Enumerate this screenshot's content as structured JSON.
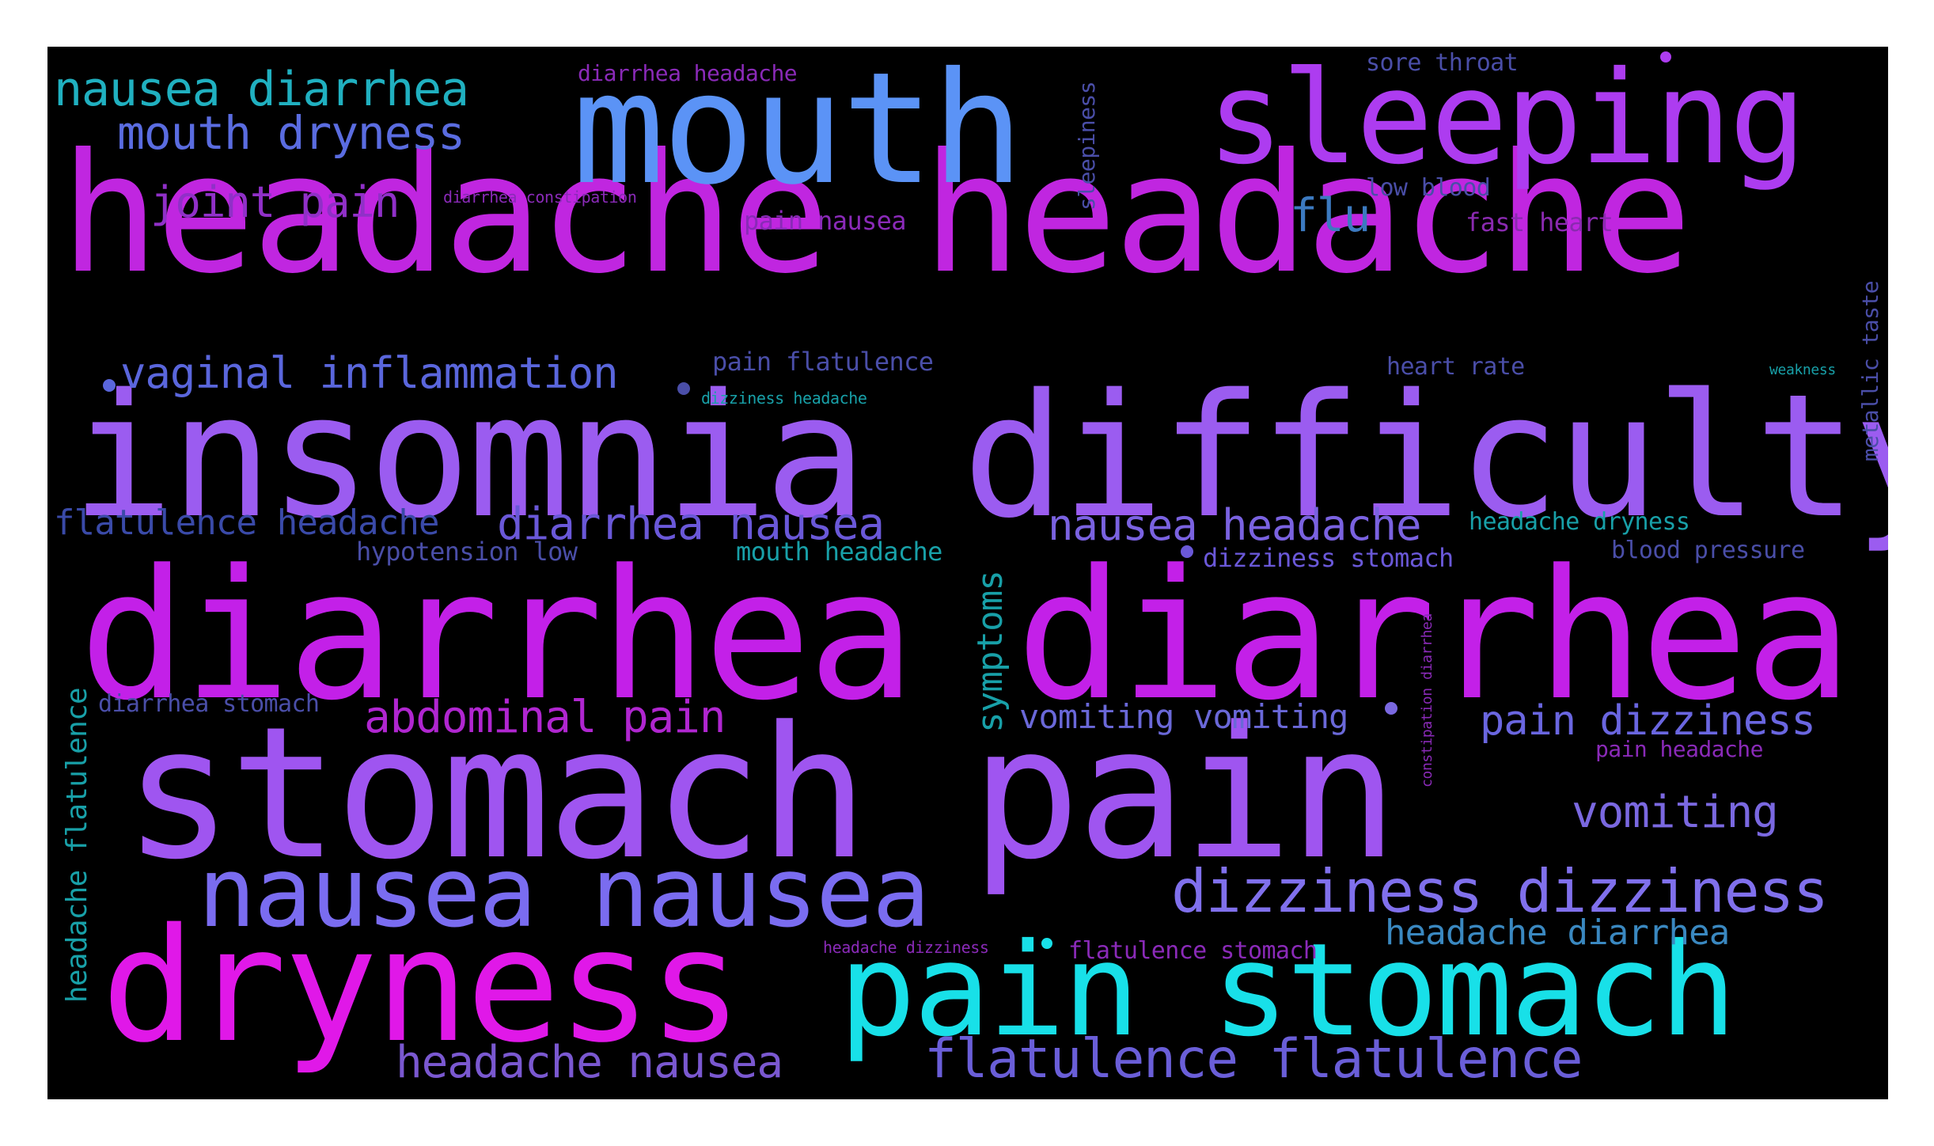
{
  "words": [
    {
      "text": "headache headache",
      "color": "#c026e0"
    },
    {
      "text": "insomnia difficulty",
      "color": "#9b5cf0"
    },
    {
      "text": "diarrhea diarrhea",
      "color": "#c320e8"
    },
    {
      "text": "stomach pain",
      "color": "#9f55f0"
    },
    {
      "text": "mouth",
      "color": "#5b93f6"
    },
    {
      "text": "sleeping",
      "color": "#ad3cf0"
    },
    {
      "text": "dryness",
      "color": "#e018e8"
    },
    {
      "text": "pain stomach",
      "color": "#18e0e8"
    },
    {
      "text": "nausea nausea",
      "color": "#7a6cf0"
    },
    {
      "text": "dizziness dizziness",
      "color": "#8070ec"
    },
    {
      "text": "flatulence flatulence",
      "color": "#6a5ed8"
    },
    {
      "text": "headache nausea",
      "color": "#7a58d0"
    },
    {
      "text": "nausea diarrhea",
      "color": "#20b0c0"
    },
    {
      "text": "mouth dryness",
      "color": "#5a6ce0"
    },
    {
      "text": "joint pain",
      "color": "#9030c8"
    },
    {
      "text": "vaginal inflammation",
      "color": "#5a66dc"
    },
    {
      "text": "flatulence headache",
      "color": "#3a4aa8"
    },
    {
      "text": "diarrhea nausea",
      "color": "#6a58d8"
    },
    {
      "text": "nausea headache",
      "color": "#7a62e0"
    },
    {
      "text": "abdominal pain",
      "color": "#b026d0"
    },
    {
      "text": "vomiting vomiting",
      "color": "#6a68d8"
    },
    {
      "text": "pain dizziness",
      "color": "#6a66e0"
    },
    {
      "text": "vomiting",
      "color": "#7a68e0"
    },
    {
      "text": "headache diarrhea",
      "color": "#3a88c0"
    },
    {
      "text": "flu",
      "color": "#3c7ac0"
    },
    {
      "text": "diarrhea headache",
      "color": "#8a2ab8"
    },
    {
      "text": "sore throat",
      "color": "#4a4ea8"
    },
    {
      "text": "low blood",
      "color": "#4a4ea8"
    },
    {
      "text": "fast heart",
      "color": "#8a2ab0"
    },
    {
      "text": "pain nausea",
      "color": "#8a2ab8"
    },
    {
      "text": "pain flatulence",
      "color": "#4a4ea8"
    },
    {
      "text": "heart rate",
      "color": "#4a4ea8"
    },
    {
      "text": "hypotension low",
      "color": "#4a4ea8"
    },
    {
      "text": "mouth headache",
      "color": "#18a0a8"
    },
    {
      "text": "dizziness stomach",
      "color": "#6a58d8"
    },
    {
      "text": "headache dryness",
      "color": "#18a0a8"
    },
    {
      "text": "blood pressure",
      "color": "#4a4ea8"
    },
    {
      "text": "diarrhea stomach",
      "color": "#4a4ea8"
    },
    {
      "text": "pain headache",
      "color": "#8a2ab8"
    },
    {
      "text": "flatulence stomach",
      "color": "#8a2ab8"
    },
    {
      "text": "headache dizziness",
      "color": "#8a2ab8"
    },
    {
      "text": "diarrhea constipation",
      "color": "#8a2ab8"
    },
    {
      "text": "dizziness headache",
      "color": "#18a0a8"
    },
    {
      "text": "weakness",
      "color": "#18a0a8"
    },
    {
      "text": "symptoms",
      "color": "#18a0a8"
    },
    {
      "text": "headache flatulence",
      "color": "#18a0a8"
    },
    {
      "text": "sleepiness",
      "color": "#4a4ea8"
    },
    {
      "text": "metallic taste",
      "color": "#4a4ea8"
    },
    {
      "text": "constipation diarrhea",
      "color": "#8a2ab8"
    }
  ]
}
